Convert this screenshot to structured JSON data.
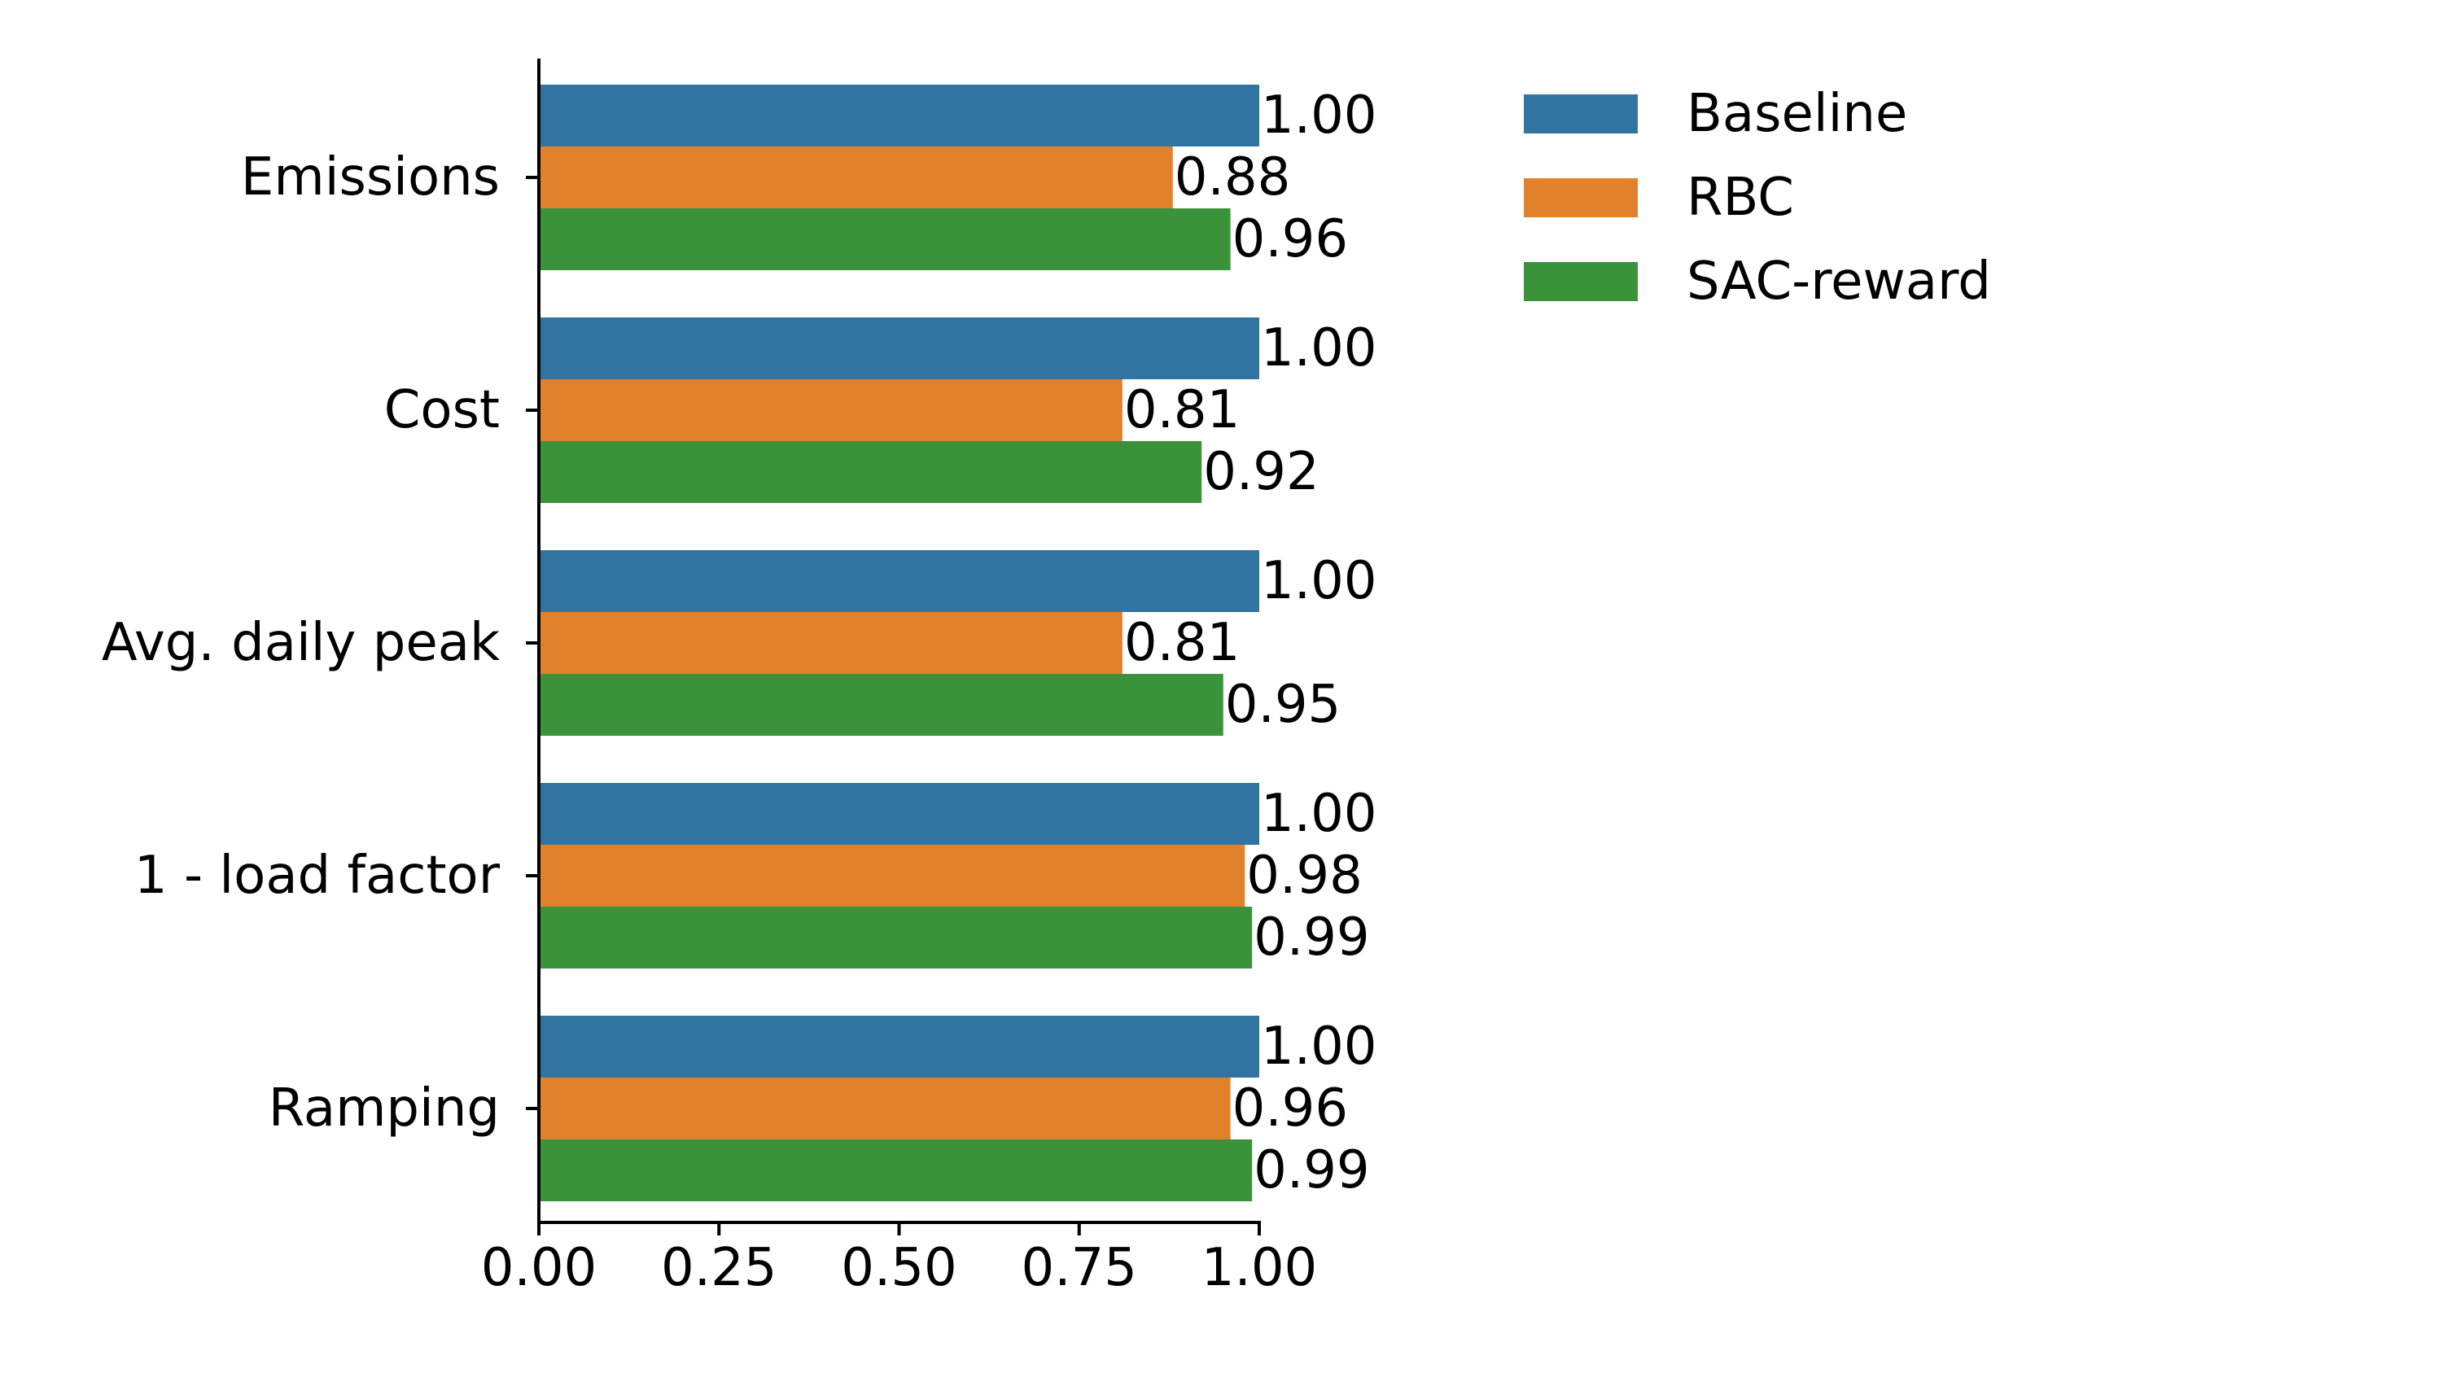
{
  "chart_data": {
    "type": "bar",
    "orientation": "horizontal",
    "categories": [
      "Emissions",
      "Cost",
      "Avg. daily peak",
      "1 - load factor",
      "Ramping"
    ],
    "series": [
      {
        "name": "Baseline",
        "color": "#3274a1",
        "values": [
          1.0,
          1.0,
          1.0,
          1.0,
          1.0
        ],
        "labels": [
          "1.00",
          "1.00",
          "1.00",
          "1.00",
          "1.00"
        ]
      },
      {
        "name": "RBC",
        "color": "#e1812c",
        "values": [
          0.88,
          0.81,
          0.81,
          0.98,
          0.96
        ],
        "labels": [
          "0.88",
          "0.81",
          "0.81",
          "0.98",
          "0.96"
        ]
      },
      {
        "name": "SAC-reward",
        "color": "#3a923a",
        "values": [
          0.96,
          0.92,
          0.95,
          0.99,
          0.99
        ],
        "labels": [
          "0.96",
          "0.92",
          "0.95",
          "0.99",
          "0.99"
        ]
      }
    ],
    "xlim": [
      0,
      1
    ],
    "xticks": [
      "0.00",
      "0.25",
      "0.50",
      "0.75",
      "1.00"
    ],
    "title": "",
    "xlabel": "",
    "ylabel": "",
    "grid": false,
    "legend": "upper-right-outside"
  }
}
